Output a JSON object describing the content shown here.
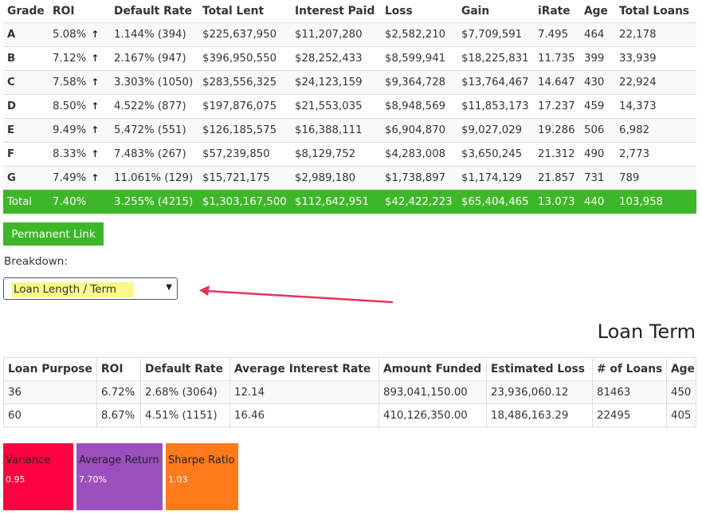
{
  "grade_table": {
    "headers": [
      "Grade",
      "ROI",
      "Default Rate",
      "Total Lent",
      "Interest Paid",
      "Loss",
      "Gain",
      "iRate",
      "Age",
      "Total Loans"
    ],
    "rows": [
      {
        "grade": "A",
        "roi": "5.08%",
        "default_rate": "1.144% (394)",
        "total_lent": "$225,637,950",
        "interest_paid": "$11,207,280",
        "loss": "$2,582,210",
        "gain": "$7,709,591",
        "irate": "7.495",
        "age": "464",
        "total_loans": "22,178"
      },
      {
        "grade": "B",
        "roi": "7.12%",
        "default_rate": "2.167% (947)",
        "total_lent": "$396,950,550",
        "interest_paid": "$28,252,433",
        "loss": "$8,599,941",
        "gain": "$18,225,831",
        "irate": "11.735",
        "age": "399",
        "total_loans": "33,939"
      },
      {
        "grade": "C",
        "roi": "7.58%",
        "default_rate": "3.303% (1050)",
        "total_lent": "$283,556,325",
        "interest_paid": "$24,123,159",
        "loss": "$9,364,728",
        "gain": "$13,764,467",
        "irate": "14.647",
        "age": "430",
        "total_loans": "22,924"
      },
      {
        "grade": "D",
        "roi": "8.50%",
        "default_rate": "4.522% (877)",
        "total_lent": "$197,876,075",
        "interest_paid": "$21,553,035",
        "loss": "$8,948,569",
        "gain": "$11,853,173",
        "irate": "17.237",
        "age": "459",
        "total_loans": "14,373"
      },
      {
        "grade": "E",
        "roi": "9.49%",
        "default_rate": "5.472% (551)",
        "total_lent": "$126,185,575",
        "interest_paid": "$16,388,111",
        "loss": "$6,904,870",
        "gain": "$9,027,029",
        "irate": "19.286",
        "age": "506",
        "total_loans": "6,982"
      },
      {
        "grade": "F",
        "roi": "8.33%",
        "default_rate": "7.483% (267)",
        "total_lent": "$57,239,850",
        "interest_paid": "$8,129,752",
        "loss": "$4,283,008",
        "gain": "$3,650,245",
        "irate": "21.312",
        "age": "490",
        "total_loans": "2,773"
      },
      {
        "grade": "G",
        "roi": "7.49%",
        "default_rate": "11.061% (129)",
        "total_lent": "$15,721,175",
        "interest_paid": "$2,989,180",
        "loss": "$1,738,897",
        "gain": "$1,174,129",
        "irate": "21.857",
        "age": "731",
        "total_loans": "789"
      }
    ],
    "roi_arrow_icon": "up-arrow-icon",
    "total": {
      "grade": "Total",
      "roi": "7.40%",
      "default_rate": "3.255% (4215)",
      "total_lent": "$1,303,167,500",
      "interest_paid": "$112,642,951",
      "loss": "$42,422,223",
      "gain": "$65,404,465",
      "irate": "13.073",
      "age": "440",
      "total_loans": "103,958"
    }
  },
  "permalink_label": "Permanent Link",
  "breakdown": {
    "label": "Breakdown:",
    "selected": "Loan Length / Term",
    "caret_icon": "caret-down-icon"
  },
  "annotation": {
    "color": "#e8325a",
    "icon": "arrow-left-icon"
  },
  "section_title": "Loan Term",
  "term_table": {
    "headers": [
      "Loan Purpose",
      "ROI",
      "Default Rate",
      "Average Interest Rate",
      "Amount Funded",
      "Estimated Loss",
      "# of Loans",
      "Age"
    ],
    "rows": [
      {
        "purpose": "36",
        "roi": "6.72%",
        "default_rate": "2.68% (3064)",
        "avg_rate": "12.14",
        "amount_funded": "893,041,150.00",
        "estimated_loss": "23,936,060.12",
        "loans": "81463",
        "age": "450"
      },
      {
        "purpose": "60",
        "roi": "8.67%",
        "default_rate": "4.51% (1151)",
        "avg_rate": "16.46",
        "amount_funded": "410,126,350.00",
        "estimated_loss": "18,486,163.29",
        "loans": "22495",
        "age": "405"
      }
    ]
  },
  "stats": {
    "variance": {
      "title": "Variance",
      "value": "0.95",
      "color": "#ff0040"
    },
    "average_return": {
      "title": "Average Return",
      "value": "7.70%",
      "color": "#9b4fbe"
    },
    "sharpe_ratio": {
      "title": "Sharpe Ratio",
      "value": "1.03",
      "color": "#ff7a1a"
    }
  },
  "colors": {
    "accent_green": "#3db727",
    "highlight_yellow": "#faf88a"
  }
}
